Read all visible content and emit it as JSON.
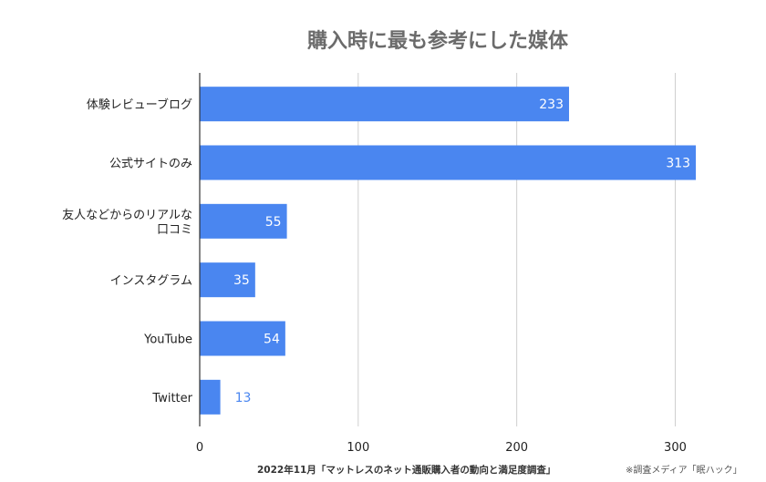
{
  "colors": {
    "bar": "#4a86f0",
    "grid": "#cfcfcf",
    "axis": "#333333",
    "label_outside": "#4a86f0"
  },
  "chart_data": {
    "type": "bar",
    "orientation": "horizontal",
    "title": "購入時に最も参考にした媒体",
    "categories": [
      [
        "体験レビューブログ"
      ],
      [
        "公式サイトのみ"
      ],
      [
        "友人などからのリアルな",
        "口コミ"
      ],
      [
        "インスタグラム"
      ],
      [
        "YouTube"
      ],
      [
        "Twitter"
      ]
    ],
    "values": [
      233,
      313,
      55,
      35,
      54,
      13
    ],
    "xlim": [
      0,
      340
    ],
    "xticks": [
      0,
      100,
      200,
      300
    ],
    "grid": true,
    "legend": "none"
  },
  "footer": {
    "source": "2022年11月「マットレスのネット通販購入者の動向と満足度調査」",
    "credit": "※調査メディア「眠ハック」"
  }
}
